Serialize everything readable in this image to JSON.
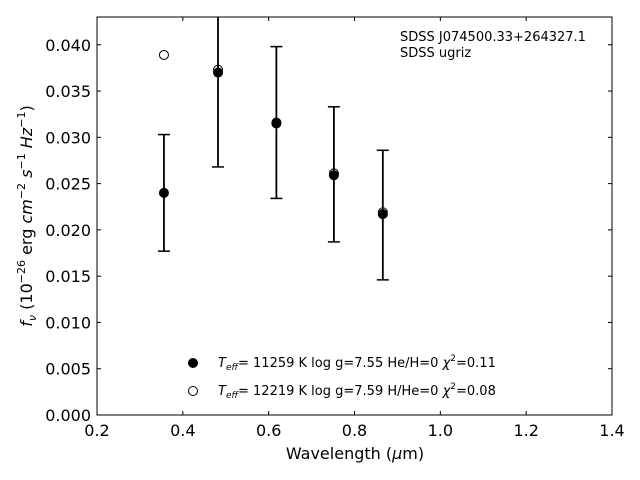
{
  "chart_data": {
    "type": "scatter",
    "xlabel": "Wavelength (μm)",
    "ylabel": "f_ν (10^-26 erg cm^-2 s^-1 Hz^-1)",
    "xlim": [
      0.2,
      1.4
    ],
    "ylim": [
      0.0,
      0.043
    ],
    "x_ticks": [
      "0.2",
      "0.4",
      "0.6",
      "0.8",
      "1.0",
      "1.2",
      "1.4"
    ],
    "y_ticks": [
      "0.000",
      "0.005",
      "0.010",
      "0.015",
      "0.020",
      "0.025",
      "0.030",
      "0.035",
      "0.040"
    ],
    "annotation": [
      "SDSS J074500.33+264327.1",
      "SDSS ugriz"
    ],
    "observed": {
      "x": [
        0.356,
        0.482,
        0.618,
        0.752,
        0.866
      ],
      "y": [
        0.024,
        0.0371,
        0.0316,
        0.026,
        0.0216
      ],
      "err": [
        0.0063,
        0.0103,
        0.0082,
        0.0073,
        0.007
      ]
    },
    "series": [
      {
        "name": "T_eff= 11259 K  log g=7.55  He/H=0  χ²=0.11",
        "marker": "filled-circle",
        "x": [
          0.356,
          0.482,
          0.618,
          0.752,
          0.866
        ],
        "y": [
          0.024,
          0.037,
          0.0315,
          0.0259,
          0.0217
        ]
      },
      {
        "name": "T_eff= 12219 K  log g=7.59  H/He=0  χ²=0.08",
        "marker": "open-circle",
        "x": [
          0.356,
          0.482,
          0.618,
          0.752,
          0.866
        ],
        "y": [
          0.0389,
          0.0373,
          0.0316,
          0.0261,
          0.0219
        ]
      }
    ],
    "legend_position": "lower-center",
    "grid": false
  }
}
